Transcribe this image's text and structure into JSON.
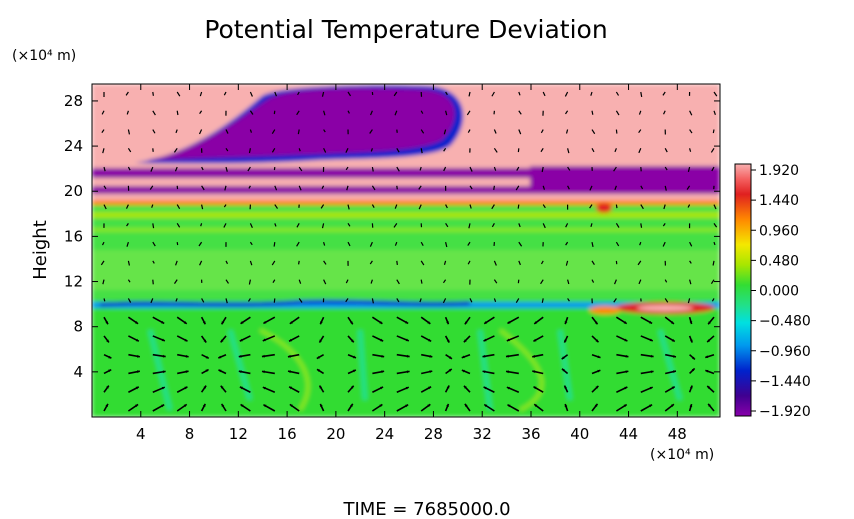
{
  "chart_data": {
    "type": "heatmap",
    "title": "Potential Temperature Deviation",
    "ylabel": "Height",
    "yunit": "(×10⁴ m)",
    "xunit": "(×10⁴ m)",
    "x_ticks": [
      "4",
      "8",
      "12",
      "16",
      "20",
      "24",
      "28",
      "32",
      "36",
      "40",
      "44",
      "48"
    ],
    "y_ticks": [
      "4",
      "8",
      "12",
      "16",
      "20",
      "24",
      "28"
    ],
    "xlim": [
      0,
      51.5
    ],
    "ylim": [
      0,
      29.5
    ],
    "colorbar": {
      "labels": [
        "1.920",
        "1.440",
        "0.960",
        "0.480",
        "0.000",
        "−0.480",
        "−0.960",
        "−1.440",
        "−1.920"
      ],
      "min": -1.92,
      "max": 1.92
    },
    "overlay": "wind velocity vectors",
    "footer": "TIME = 7685000.0"
  }
}
